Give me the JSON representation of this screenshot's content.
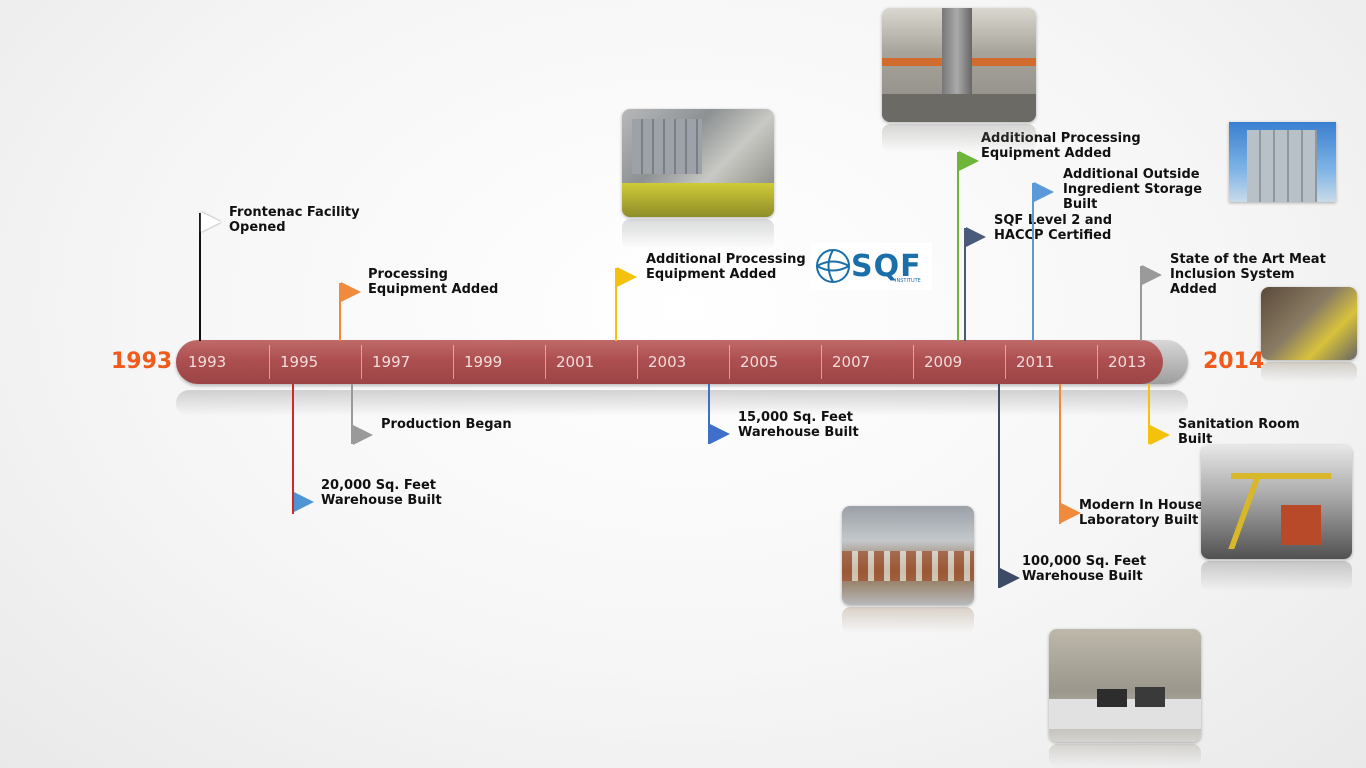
{
  "timeline": {
    "start_label": "1993",
    "end_label": "2014",
    "ticks": [
      "1993",
      "1995",
      "1997",
      "1999",
      "2001",
      "2003",
      "2005",
      "2007",
      "2009",
      "2011",
      "2013"
    ],
    "bar_color": "#ad4f50",
    "year_color": "#f05a1a"
  },
  "milestones": [
    {
      "label": "Frontenac Facility Opened",
      "color": "#ffffff"
    },
    {
      "label": "Processing Equipment Added",
      "color": "#f08a3c"
    },
    {
      "label": "Production Began",
      "color": "#9a9a9a"
    },
    {
      "label": "20,000 Sq. Feet Warehouse Built",
      "color": "#4f95d6"
    },
    {
      "label": "Additional Processing Equipment Added",
      "color": "#f4c20d"
    },
    {
      "label": "15,000 Sq. Feet Warehouse Built",
      "color": "#3f6fc8"
    },
    {
      "label": "Additional Processing Equipment Added",
      "color": "#6fb53a"
    },
    {
      "label": "SQF Level 2 and HACCP Certified",
      "color": "#4a5a7a"
    },
    {
      "label": "Additional Outside Ingredient Storage Built",
      "color": "#5a9ad8"
    },
    {
      "label": "100,000 Sq. Feet Warehouse Built",
      "color": "#3d4b66"
    },
    {
      "label": "Modern In House Laboratory Built",
      "color": "#f08a3c"
    },
    {
      "label": "State of the Art Meat Inclusion System Added",
      "color": "#9a9a9a"
    },
    {
      "label": "Sanitation Room Built",
      "color": "#f4c20d"
    }
  ],
  "logo": {
    "text": "SQF",
    "subtext": "INSTITUTE"
  }
}
